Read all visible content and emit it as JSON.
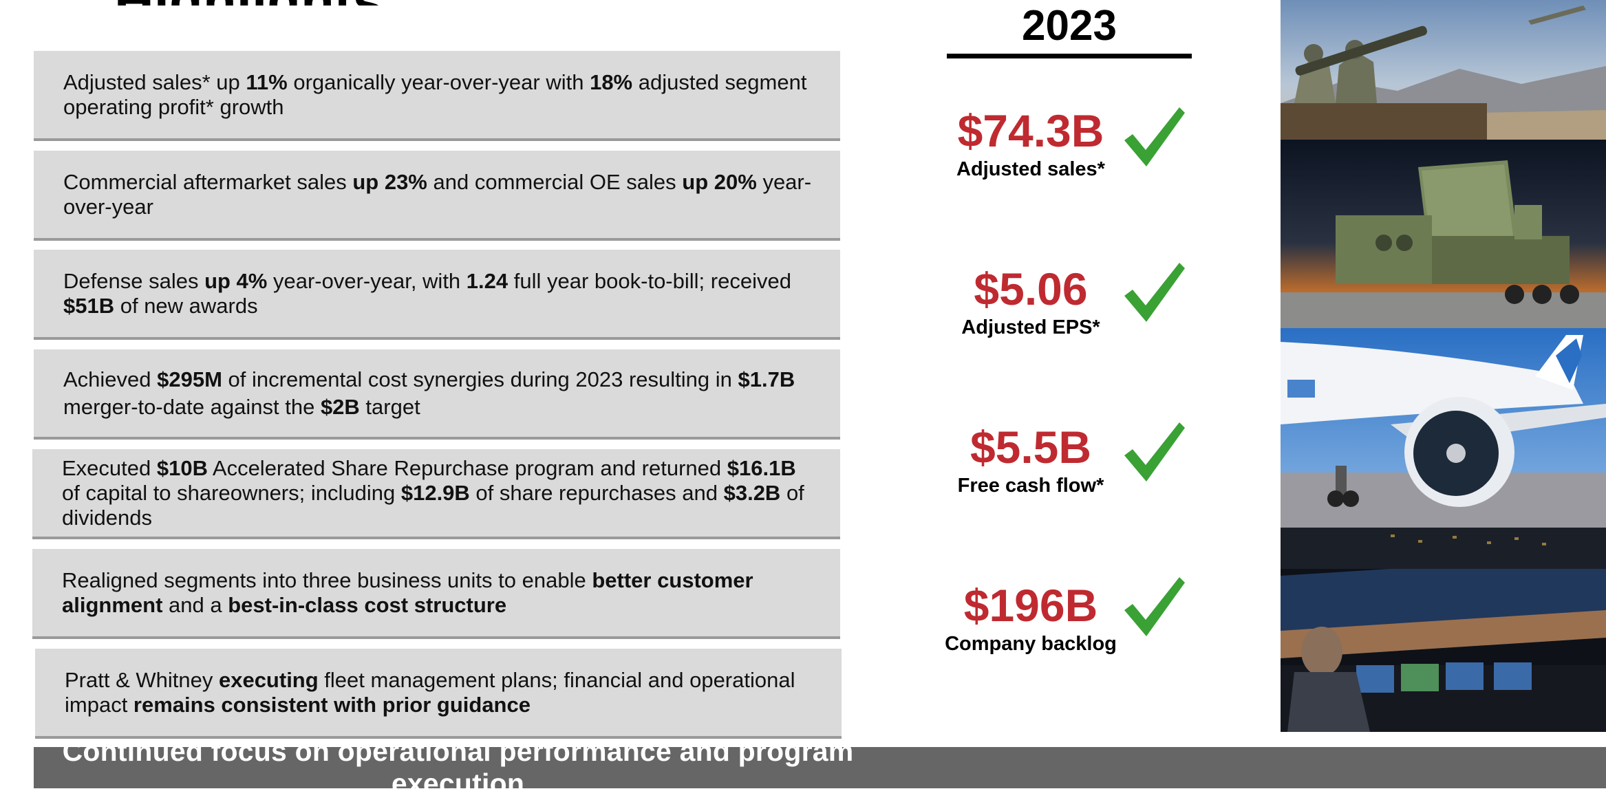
{
  "slide": {
    "title_fragment": "Highlights",
    "banner": "Continued focus on operational performance and program execution"
  },
  "highlights": [
    {
      "parts": [
        {
          "t": "Adjusted sales* up ",
          "b": false
        },
        {
          "t": "11%",
          "b": true
        },
        {
          "t": " organically year-over-year with ",
          "b": false
        },
        {
          "t": "18%",
          "b": true
        },
        {
          "t": " adjusted segment operating profit* growth",
          "b": false
        }
      ]
    },
    {
      "parts": [
        {
          "t": "Commercial aftermarket sales ",
          "b": false
        },
        {
          "t": "up 23%",
          "b": true
        },
        {
          "t": " and commercial OE sales ",
          "b": false
        },
        {
          "t": "up 20%",
          "b": true
        },
        {
          "t": " year-over-year",
          "b": false
        }
      ]
    },
    {
      "parts": [
        {
          "t": "Defense sales ",
          "b": false
        },
        {
          "t": "up 4%",
          "b": true
        },
        {
          "t": " year-over-year, with ",
          "b": false
        },
        {
          "t": "1.24",
          "b": true
        },
        {
          "t": " full year book-to-bill; received ",
          "b": false
        },
        {
          "t": "$51B",
          "b": true
        },
        {
          "t": " of new awards",
          "b": false
        }
      ]
    },
    {
      "parts": [
        {
          "t": "Achieved ",
          "b": false
        },
        {
          "t": "$295M",
          "b": true
        },
        {
          "t": " of incremental cost synergies during 2023 resulting in ",
          "b": false
        },
        {
          "t": "$1.7B",
          "b": true
        },
        {
          "t": " merger-to-date against the ",
          "b": false
        },
        {
          "t": "$2B",
          "b": true
        },
        {
          "t": " target",
          "b": false
        }
      ]
    },
    {
      "parts": [
        {
          "t": "Executed ",
          "b": false
        },
        {
          "t": "$10B",
          "b": true
        },
        {
          "t": " Accelerated Share Repurchase program and returned ",
          "b": false
        },
        {
          "t": "$16.1B",
          "b": true
        },
        {
          "t": " of capital to shareowners; including ",
          "b": false
        },
        {
          "t": "$12.9B",
          "b": true
        },
        {
          "t": " of share repurchases and ",
          "b": false
        },
        {
          "t": "$3.2B",
          "b": true
        },
        {
          "t": " of dividends",
          "b": false
        }
      ]
    },
    {
      "parts": [
        {
          "t": "Realigned segments into three business units to enable ",
          "b": false
        },
        {
          "t": "better customer alignment",
          "b": true
        },
        {
          "t": " and a ",
          "b": false
        },
        {
          "t": "best-in-class cost structure",
          "b": true
        }
      ]
    },
    {
      "parts": [
        {
          "t": "Pratt & Whitney ",
          "b": false
        },
        {
          "t": "executing",
          "b": true
        },
        {
          "t": " fleet management plans; financial and operational impact ",
          "b": false
        },
        {
          "t": "remains consistent with prior guidance",
          "b": true
        }
      ]
    }
  ],
  "results": {
    "year": "2023",
    "metrics": [
      {
        "value": "$74.3B",
        "label": "Adjusted sales*"
      },
      {
        "value": "$5.06",
        "label": "Adjusted EPS*"
      },
      {
        "value": "$5.5B",
        "label": "Free cash flow*"
      },
      {
        "value": "$196B",
        "label": "Company backlog"
      }
    ]
  },
  "colors": {
    "value_red": "#bf2a30",
    "check_green": "#3aa135",
    "box_gray": "#dadada",
    "banner_gray": "#666666"
  },
  "icons": [
    "checkmark-icon"
  ]
}
